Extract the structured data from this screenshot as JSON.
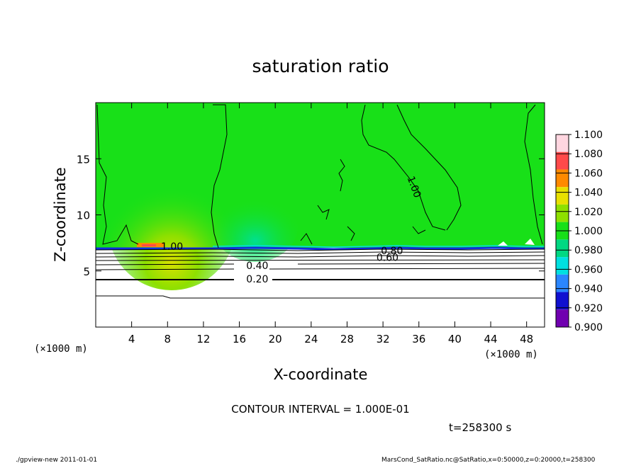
{
  "chart_data": {
    "type": "contour",
    "title": "saturation ratio",
    "xlabel": "X-coordinate",
    "ylabel": "Z-coordinate",
    "x_unit": "(×1000 m)",
    "y_unit": "(×1000 m)",
    "xlim": [
      0,
      50
    ],
    "ylim": [
      0,
      20
    ],
    "x_ticks": [
      4,
      8,
      12,
      16,
      20,
      24,
      28,
      32,
      36,
      40,
      44,
      48
    ],
    "y_ticks": [
      5,
      10,
      15
    ],
    "contour_labels": [
      {
        "text": "1.00",
        "x": 8.5,
        "z": 7.2
      },
      {
        "text": "0.40",
        "x": 18.0,
        "z": 5.5
      },
      {
        "text": "0.20",
        "x": 18.0,
        "z": 4.3
      },
      {
        "text": "0.80",
        "x": 33.0,
        "z": 6.8
      },
      {
        "text": "0.60",
        "x": 32.5,
        "z": 6.2
      },
      {
        "text": "1.00",
        "x": 35.5,
        "z": 12.5
      }
    ],
    "colorbar": {
      "levels": [
        "1.100",
        "1.080",
        "1.060",
        "1.040",
        "1.020",
        "1.000",
        "0.980",
        "0.960",
        "0.940",
        "0.920",
        "0.900"
      ],
      "colors": [
        "#ffd6e0",
        "#ff4a4a",
        "#ff8a00",
        "#e8e000",
        "#8ee000",
        "#18e018",
        "#00d882",
        "#00e0e0",
        "#2a86ff",
        "#1010d0",
        "#7000b0"
      ]
    },
    "contour_interval": "CONTOUR INTERVAL = 1.000E-01",
    "time_label": "t=258300 s"
  },
  "footer": {
    "left": "./gpview-new  2011-01-01",
    "right": "MarsCond_SatRatio.nc@SatRatio,x=0:50000,z=0:20000,t=258300"
  }
}
